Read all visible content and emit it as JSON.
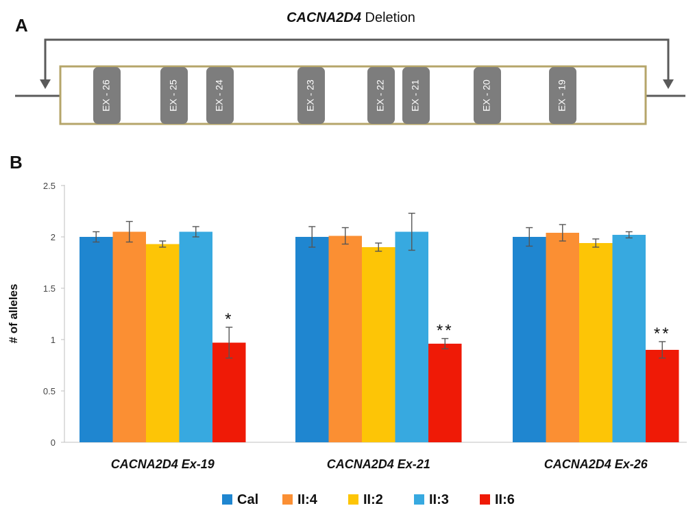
{
  "panel_a": {
    "letter": "A",
    "title_gene": "CACNA2D4",
    "title_rest": " Deletion",
    "exons": [
      {
        "label": "EX - 26"
      },
      {
        "label": "EX - 25"
      },
      {
        "label": "EX - 24"
      },
      {
        "label": "EX - 23"
      },
      {
        "label": "EX - 22"
      },
      {
        "label": "EX - 21"
      },
      {
        "label": "EX - 20"
      },
      {
        "label": "EX - 19"
      }
    ],
    "colors": {
      "exon_fill": "#7d7d7d",
      "box_stroke": "#b5a56a",
      "line": "#5a5a5a"
    }
  },
  "panel_b_letter": "B",
  "chart_data": {
    "type": "bar",
    "title": "",
    "xlabel": "",
    "ylabel": "# of alleles",
    "ylim": [
      0,
      2.5
    ],
    "yticks": [
      "0",
      "0.5",
      "1",
      "1.5",
      "2",
      "2.5"
    ],
    "categories": [
      "CACNA2D4 Ex-19",
      "CACNA2D4 Ex-21",
      "CACNA2D4 Ex-26"
    ],
    "series": [
      {
        "name": "Cal",
        "color": "#1f86d0",
        "values": [
          2.0,
          2.0,
          2.0
        ],
        "errors": [
          0.05,
          0.1,
          0.09
        ]
      },
      {
        "name": "II:4",
        "color": "#fb8f33",
        "values": [
          2.05,
          2.01,
          2.04
        ],
        "errors": [
          0.1,
          0.08,
          0.08
        ]
      },
      {
        "name": "II:2",
        "color": "#fdc506",
        "values": [
          1.93,
          1.9,
          1.94
        ],
        "errors": [
          0.03,
          0.04,
          0.04
        ]
      },
      {
        "name": "II:3",
        "color": "#37a9e0",
        "values": [
          2.05,
          2.05,
          2.02
        ],
        "errors": [
          0.05,
          0.18,
          0.03
        ]
      },
      {
        "name": "II:6",
        "color": "#ef1a06",
        "values": [
          0.97,
          0.96,
          0.9
        ],
        "errors": [
          0.15,
          0.05,
          0.08
        ]
      }
    ],
    "annotations": [
      {
        "category": 0,
        "series": 4,
        "text": "*"
      },
      {
        "category": 1,
        "series": 4,
        "text": "**"
      },
      {
        "category": 2,
        "series": 4,
        "text": "**"
      }
    ],
    "grid": false,
    "legend_position": "bottom"
  }
}
